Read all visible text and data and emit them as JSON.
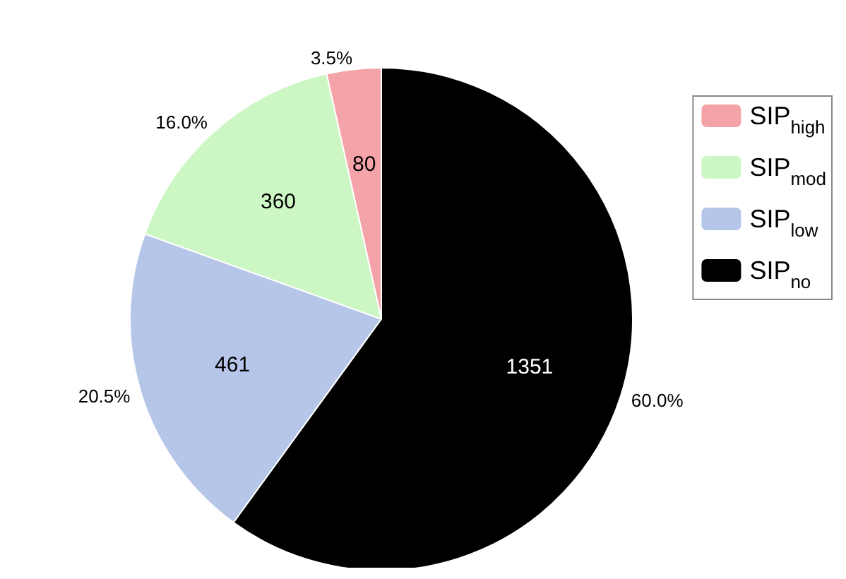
{
  "chart_data": {
    "type": "pie",
    "categories": [
      "SIP$_{high}$",
      "SIP$_{mod}$",
      "SIP$_{low}$",
      "SIP$_{no}$"
    ],
    "values": [
      3.5,
      16.0,
      20.5,
      60.0
    ],
    "colors": [
      "#f4a3a8",
      "#ccf6c4",
      "#b5c6e8",
      "#000000"
    ],
    "value_labels": [
      "3.5%",
      "16.0%",
      "20.5%",
      "60.0%"
    ],
    "annotations": [
      "80",
      "360",
      "461",
      "1351"
    ],
    "legend": "right"
  }
}
